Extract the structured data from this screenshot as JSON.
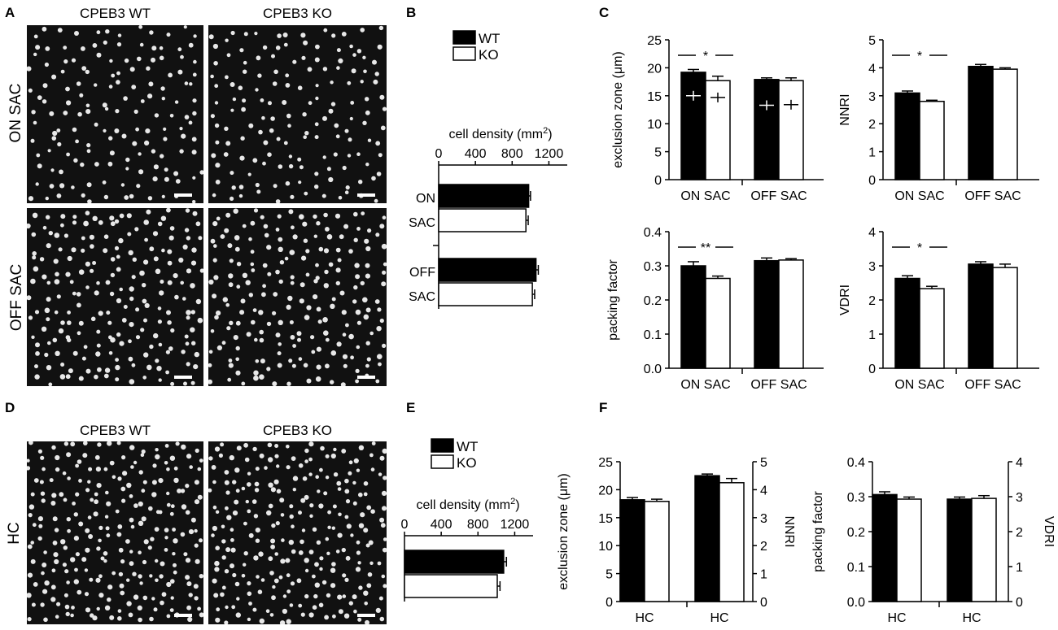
{
  "panels": {
    "A": {
      "letter": "A",
      "columns": [
        "CPEB3 WT",
        "CPEB3 KO"
      ],
      "rows": [
        "ON SAC",
        "OFF SAC"
      ]
    },
    "B": {
      "letter": "B"
    },
    "C": {
      "letter": "C"
    },
    "D": {
      "letter": "D",
      "columns": [
        "CPEB3 WT",
        "CPEB3 KO"
      ],
      "rows": [
        "HC"
      ]
    },
    "E": {
      "letter": "E"
    },
    "F": {
      "letter": "F"
    }
  },
  "legend": {
    "wt": "WT",
    "ko": "KO"
  },
  "colors": {
    "wt": "#000000",
    "ko": "#ffffff",
    "axis": "#000000",
    "micro_bg": "#111111",
    "cell": "#e8e8e8"
  },
  "chart_data": [
    {
      "id": "B",
      "type": "bar",
      "orientation": "horizontal",
      "xlabel": "cell density (mm2)",
      "xlim": [
        0,
        1400
      ],
      "xticks": [
        0,
        400,
        800,
        1200
      ],
      "categories": [
        [
          "ON",
          "SAC"
        ],
        [
          "OFF",
          "SAC"
        ]
      ],
      "series": [
        {
          "name": "WT",
          "values": [
            980,
            1060
          ],
          "errors": [
            20,
            25
          ]
        },
        {
          "name": "KO",
          "values": [
            950,
            1020
          ],
          "errors": [
            25,
            25
          ]
        }
      ]
    },
    {
      "id": "C1",
      "type": "bar",
      "ylabel": "exclusion zone (μm)",
      "ylim": [
        0,
        25
      ],
      "yticks": [
        0,
        5,
        10,
        15,
        20,
        25
      ],
      "categories": [
        "ON SAC",
        "OFF SAC"
      ],
      "series": [
        {
          "name": "WT",
          "values": [
            19.2,
            17.9
          ],
          "errors": [
            0.5,
            0.3
          ],
          "inner_values": [
            15.0,
            13.3
          ]
        },
        {
          "name": "KO",
          "values": [
            17.7,
            17.7
          ],
          "errors": [
            0.8,
            0.5
          ],
          "inner_values": [
            14.7,
            13.4
          ]
        }
      ],
      "significance": {
        "category": 0,
        "label": "*"
      }
    },
    {
      "id": "C2",
      "type": "bar",
      "ylabel": "NNRI",
      "ylim": [
        0,
        5
      ],
      "yticks": [
        0,
        1,
        2,
        3,
        4,
        5
      ],
      "categories": [
        "ON SAC",
        "OFF SAC"
      ],
      "series": [
        {
          "name": "WT",
          "values": [
            3.1,
            4.05
          ],
          "errors": [
            0.07,
            0.07
          ]
        },
        {
          "name": "KO",
          "values": [
            2.8,
            3.95
          ],
          "errors": [
            0.04,
            0.05
          ]
        }
      ],
      "significance": {
        "category": 0,
        "label": "*"
      }
    },
    {
      "id": "C3",
      "type": "bar",
      "ylabel": "packing factor",
      "ylim": [
        0,
        0.4
      ],
      "yticks": [
        "0.0",
        "0.1",
        "0.2",
        "0.3",
        "0.4"
      ],
      "categories": [
        "ON SAC",
        "OFF SAC"
      ],
      "series": [
        {
          "name": "WT",
          "values": [
            0.3,
            0.315
          ],
          "errors": [
            0.012,
            0.008
          ]
        },
        {
          "name": "KO",
          "values": [
            0.263,
            0.317
          ],
          "errors": [
            0.007,
            0.004
          ]
        }
      ],
      "significance": {
        "category": 0,
        "label": "**"
      }
    },
    {
      "id": "C4",
      "type": "bar",
      "ylabel": "VDRI",
      "ylim": [
        0,
        4
      ],
      "yticks": [
        0,
        1,
        2,
        3,
        4
      ],
      "categories": [
        "ON SAC",
        "OFF SAC"
      ],
      "series": [
        {
          "name": "WT",
          "values": [
            2.63,
            3.05
          ],
          "errors": [
            0.08,
            0.07
          ]
        },
        {
          "name": "KO",
          "values": [
            2.33,
            2.95
          ],
          "errors": [
            0.07,
            0.1
          ]
        }
      ],
      "significance": {
        "category": 0,
        "label": "*"
      }
    },
    {
      "id": "E",
      "type": "bar",
      "orientation": "horizontal",
      "xlabel": "cell density (mm2)",
      "xlim": [
        0,
        1400
      ],
      "xticks": [
        0,
        400,
        800,
        1200
      ],
      "categories": [
        "HC"
      ],
      "series": [
        {
          "name": "WT",
          "values": [
            1080
          ],
          "errors": [
            30
          ]
        },
        {
          "name": "KO",
          "values": [
            1010
          ],
          "errors": [
            30
          ]
        }
      ]
    },
    {
      "id": "F1",
      "type": "bar",
      "dual_axis": true,
      "ylabel_left": "exclusion zone (μm)",
      "ylim_left": [
        0,
        25
      ],
      "yticks_left": [
        0,
        5,
        10,
        15,
        20,
        25
      ],
      "ylabel_right": "NNRI",
      "ylim_right": [
        0,
        5
      ],
      "yticks_right": [
        0,
        1,
        2,
        3,
        4,
        5
      ],
      "categories": [
        "HC",
        "HC"
      ],
      "category_axis": [
        "left",
        "right"
      ],
      "series": [
        {
          "name": "WT",
          "values": [
            18.2,
            4.5
          ],
          "errors": [
            0.4,
            0.06
          ]
        },
        {
          "name": "KO",
          "values": [
            17.9,
            4.25
          ],
          "errors": [
            0.4,
            0.15
          ]
        }
      ]
    },
    {
      "id": "F2",
      "type": "bar",
      "dual_axis": true,
      "ylabel_left": "packing factor",
      "ylim_left": [
        0,
        0.4
      ],
      "yticks_left": [
        "0.0",
        "0.1",
        "0.2",
        "0.3",
        "0.4"
      ],
      "ylabel_right": "VDRI",
      "ylim_right": [
        0,
        4
      ],
      "yticks_right": [
        0,
        1,
        2,
        3,
        4
      ],
      "categories": [
        "HC",
        "HC"
      ],
      "category_axis": [
        "left",
        "right"
      ],
      "series": [
        {
          "name": "WT",
          "values": [
            0.306,
            2.93
          ],
          "errors": [
            0.008,
            0.06
          ]
        },
        {
          "name": "KO",
          "values": [
            0.293,
            2.95
          ],
          "errors": [
            0.006,
            0.08
          ]
        }
      ]
    }
  ]
}
